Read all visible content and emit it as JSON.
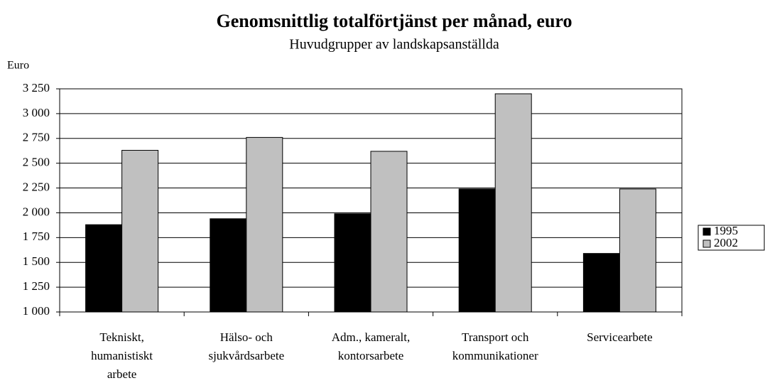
{
  "chart_data": {
    "type": "bar",
    "title": "Genomsnittlig totalförtjänst per månad, euro",
    "subtitle": "Huvudgrupper av landskapsanställda",
    "ylabel": "Euro",
    "categories": [
      "Tekniskt,\nhumanistiskt\narbete",
      "Hälso- och\nsjukvårdsarbete",
      "Adm., kameralt,\nkontorsarbete",
      "Transport och\nkommunikationer",
      "Servicearbete"
    ],
    "series": [
      {
        "name": "1995",
        "color": "#000000",
        "values": [
          1880,
          1940,
          1990,
          2240,
          1590
        ]
      },
      {
        "name": "2002",
        "color": "#c0c0c0",
        "values": [
          2630,
          2760,
          2620,
          3200,
          2240
        ]
      }
    ],
    "ylim": [
      1000,
      3250
    ],
    "yticks": [
      {
        "value": 1000,
        "label": "1 000"
      },
      {
        "value": 1250,
        "label": "1 250"
      },
      {
        "value": 1500,
        "label": "1 500"
      },
      {
        "value": 1750,
        "label": "1 750"
      },
      {
        "value": 2000,
        "label": "2 000"
      },
      {
        "value": 2250,
        "label": "2 250"
      },
      {
        "value": 2500,
        "label": "2 500"
      },
      {
        "value": 2750,
        "label": "2 750"
      },
      {
        "value": 3000,
        "label": "3 000"
      },
      {
        "value": 3250,
        "label": "3 250"
      }
    ],
    "grid": true,
    "legend": "right"
  }
}
